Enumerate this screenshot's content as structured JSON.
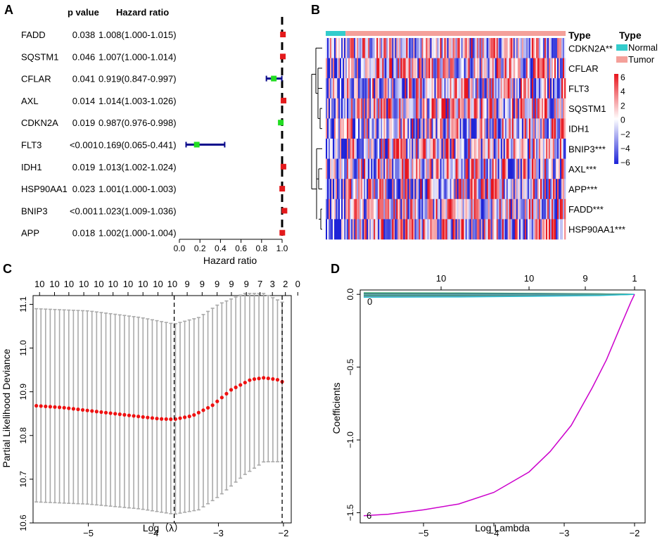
{
  "colors": {
    "hr_high": "#e41a1c",
    "hr_low": "#22dd22",
    "ci_line": "#0b0b8c",
    "heat_high": "#e8141c",
    "heat_low": "#1c22d8",
    "normal": "#33cccc",
    "tumor": "#f4a09a",
    "cv_point": "#ee1111",
    "cv_bar": "#aaaaaa",
    "path_lines": [
      "#1b9e77",
      "#4dac26",
      "#2c7fb8",
      "#7570b3",
      "#66c2a5",
      "#31a354",
      "#3182bd",
      "#999999",
      "#17becf"
    ],
    "path_main": "#cc00cc"
  },
  "chart_data": [
    {
      "type": "forest",
      "panel": "A",
      "col_p": "p value",
      "col_hr": "Hazard ratio",
      "xlabel": "Hazard ratio",
      "xlim": [
        0,
        1
      ],
      "ticks": [
        "0.0",
        "0.2",
        "0.4",
        "0.6",
        "0.8",
        "1.0"
      ],
      "genes": [
        "FADD",
        "SQSTM1",
        "CFLAR",
        "AXL",
        "CDKN2A",
        "FLT3",
        "IDH1",
        "HSP90AA1",
        "BNIP3",
        "APP"
      ],
      "pvalues": [
        "0.038",
        "0.046",
        "0.041",
        "0.014",
        "0.019",
        "<0.001",
        "0.019",
        "0.023",
        "<0.001",
        "0.018"
      ],
      "hr_text": [
        "1.008(1.000-1.015)",
        "1.007(1.000-1.014)",
        "0.919(0.847-0.997)",
        "1.014(1.003-1.026)",
        "0.987(0.976-0.998)",
        "0.169(0.065-0.441)",
        "1.013(1.002-1.024)",
        "1.001(1.000-1.003)",
        "1.023(1.009-1.036)",
        "1.002(1.000-1.004)"
      ],
      "hr": [
        1.008,
        1.007,
        0.919,
        1.014,
        0.987,
        0.169,
        1.013,
        1.001,
        1.023,
        1.002
      ],
      "lower": [
        1.0,
        1.0,
        0.847,
        1.003,
        0.976,
        0.065,
        1.002,
        1.0,
        1.009,
        1.0
      ],
      "upper": [
        1.015,
        1.014,
        0.997,
        1.026,
        0.998,
        0.441,
        1.024,
        1.003,
        1.036,
        1.004
      ]
    },
    {
      "type": "heatmap",
      "panel": "B",
      "rows": [
        "CDKN2A**",
        "CFLAR",
        "FLT3",
        "SQSTM1",
        "IDH1",
        "BNIP3***",
        "AXL***",
        "APP***",
        "FADD***",
        "HSP90AA1***"
      ],
      "annotation_label": "Type",
      "legend_title": "Type",
      "legend_groups": [
        "Normal",
        "Tumor"
      ],
      "normal_fraction": 0.08,
      "colorbar_ticks": [
        "6",
        "4",
        "2",
        "0",
        "−2",
        "−4",
        "−6"
      ],
      "colorbar_values": [
        6,
        4,
        2,
        0,
        -2,
        -4,
        -6
      ]
    },
    {
      "type": "errorbar-scatter",
      "panel": "C",
      "xlabel": "Log（λ）",
      "ylabel": "Partial Likelihood Deviance",
      "xlim": [
        -5.85,
        -1.88
      ],
      "ylim": [
        10.6,
        11.12
      ],
      "xticks": [
        "-5",
        "-4",
        "-3",
        "-2"
      ],
      "yticks": [
        "10.6",
        "10.7",
        "10.8",
        "10.9",
        "11.0",
        "11.1"
      ],
      "top_counts": [
        "10",
        "10",
        "10",
        "10",
        "10",
        "10",
        "10",
        "10",
        "10",
        "10",
        "9",
        "9",
        "9",
        "9",
        "9",
        "7",
        "3",
        "2",
        "0"
      ],
      "top_counts_x": [
        -5.75,
        -5.52,
        -5.3,
        -5.07,
        -4.84,
        -4.62,
        -4.39,
        -4.16,
        -3.93,
        -3.71,
        -3.48,
        -3.25,
        -3.02,
        -2.8,
        -2.57,
        -2.36,
        -2.17,
        -1.97,
        -1.78
      ],
      "lambda_min": -3.68,
      "lambda_1se": -2.02,
      "curve_x": [
        -5.8,
        -5.4,
        -5.0,
        -4.6,
        -4.2,
        -3.9,
        -3.68,
        -3.4,
        -3.1,
        -2.8,
        -2.5,
        -2.3,
        -2.1,
        -2.02
      ],
      "curve_y": [
        10.868,
        10.864,
        10.857,
        10.85,
        10.843,
        10.838,
        10.837,
        10.845,
        10.868,
        10.905,
        10.928,
        10.932,
        10.928,
        10.923
      ],
      "upper_x": [
        -5.8,
        -5.0,
        -4.2,
        -3.68,
        -3.3,
        -3.0,
        -2.6,
        -2.3,
        -2.02
      ],
      "upper_y": [
        11.09,
        11.085,
        11.07,
        11.055,
        11.07,
        11.1,
        11.125,
        11.125,
        11.105
      ],
      "lower_x": [
        -5.8,
        -5.0,
        -4.2,
        -3.68,
        -3.3,
        -3.0,
        -2.6,
        -2.3,
        -2.02
      ],
      "lower_y": [
        10.648,
        10.643,
        10.632,
        10.62,
        10.63,
        10.66,
        10.71,
        10.74,
        10.74
      ]
    },
    {
      "type": "line",
      "panel": "D",
      "xlabel": "Log Lambda",
      "ylabel": "Coefficients",
      "xlim": [
        -5.9,
        -1.85
      ],
      "ylim": [
        -1.57,
        0.03
      ],
      "xticks": [
        "-5",
        "-4",
        "-3",
        "-2"
      ],
      "yticks": [
        "-1.5",
        "-1.0",
        "-0.5",
        "0.0"
      ],
      "top_counts": [
        "10",
        "10",
        "9",
        "1"
      ],
      "top_counts_x": [
        -4.75,
        -3.5,
        -2.7,
        -2.0
      ],
      "left_label_top": "0",
      "left_label_bottom": "6",
      "main_x": [
        -5.85,
        -5.5,
        -5.0,
        -4.5,
        -4.0,
        -3.5,
        -3.2,
        -2.9,
        -2.6,
        -2.4,
        -2.2,
        -2.05,
        -2.0
      ],
      "main_y": [
        -1.52,
        -1.51,
        -1.48,
        -1.44,
        -1.36,
        -1.22,
        -1.08,
        -0.9,
        -0.64,
        -0.45,
        -0.22,
        -0.05,
        0.0
      ],
      "flat_lines": [
        0.01,
        0.007,
        0.004,
        0.0,
        -0.004,
        -0.008,
        -0.012,
        -0.016,
        -0.02
      ]
    }
  ],
  "panel_labels": [
    "A",
    "B",
    "C",
    "D"
  ]
}
